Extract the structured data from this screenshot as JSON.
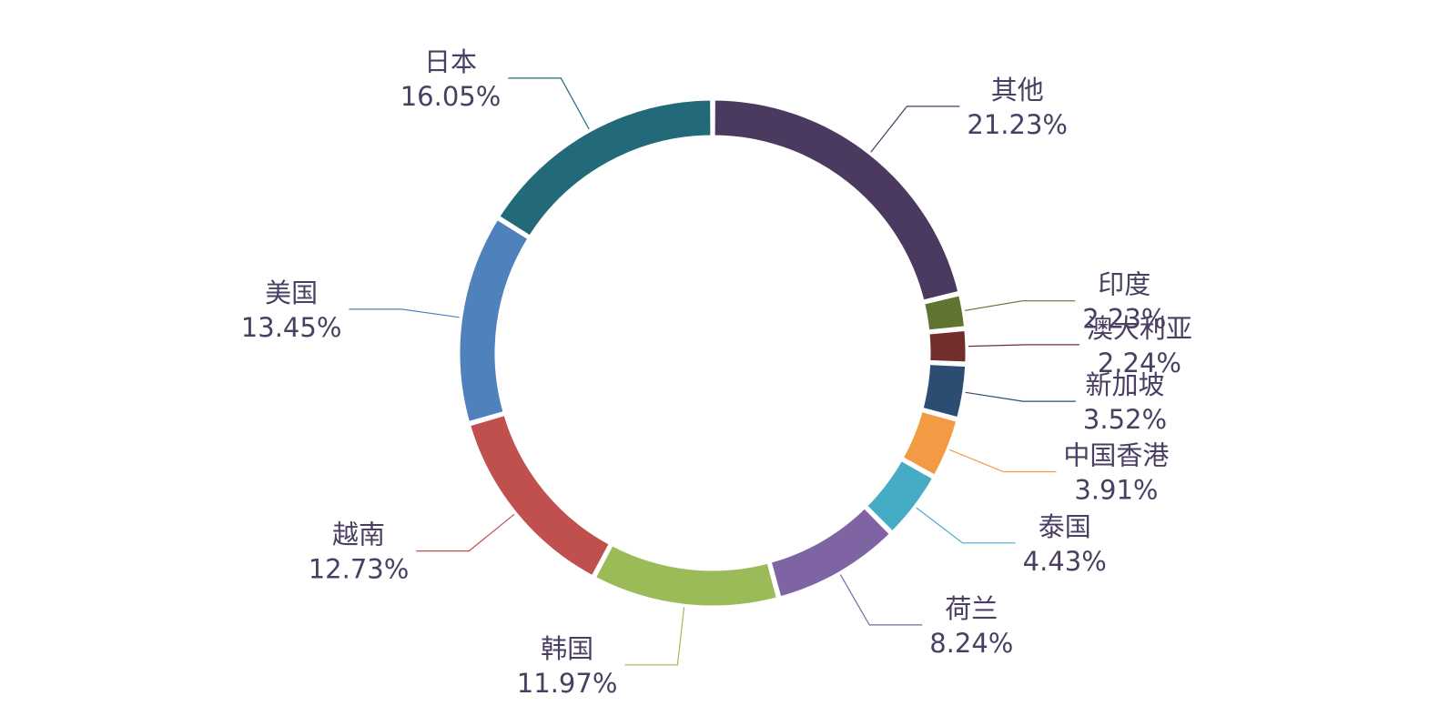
{
  "chart_data": {
    "type": "pie",
    "variant": "donut",
    "title": "",
    "start_angle_deg": 0,
    "direction": "clockwise",
    "legend": "none",
    "label_color": "#4a3f63",
    "slices": [
      {
        "label": "其他",
        "value": 21.23,
        "value_label": "21.23%",
        "color": "#4b3a5f"
      },
      {
        "label": "印度",
        "value": 2.23,
        "value_label": "2.23%",
        "color": "#5f7431"
      },
      {
        "label": "澳大利亚",
        "value": 2.24,
        "value_label": "2.24%",
        "color": "#722e2c"
      },
      {
        "label": "新加坡",
        "value": 3.52,
        "value_label": "3.52%",
        "color": "#2b4d72"
      },
      {
        "label": "中国香港",
        "value": 3.91,
        "value_label": "3.91%",
        "color": "#f39a44"
      },
      {
        "label": "泰国",
        "value": 4.43,
        "value_label": "4.43%",
        "color": "#46acc6"
      },
      {
        "label": "荷兰",
        "value": 8.24,
        "value_label": "8.24%",
        "color": "#7e64a2"
      },
      {
        "label": "韩国",
        "value": 11.97,
        "value_label": "11.97%",
        "color": "#9bbb59"
      },
      {
        "label": "越南",
        "value": 12.73,
        "value_label": "12.73%",
        "color": "#c0504d"
      },
      {
        "label": "美国",
        "value": 13.45,
        "value_label": "13.45%",
        "color": "#4f81bd"
      },
      {
        "label": "日本",
        "value": 16.05,
        "value_label": "16.05%",
        "color": "#226a7a"
      }
    ]
  }
}
